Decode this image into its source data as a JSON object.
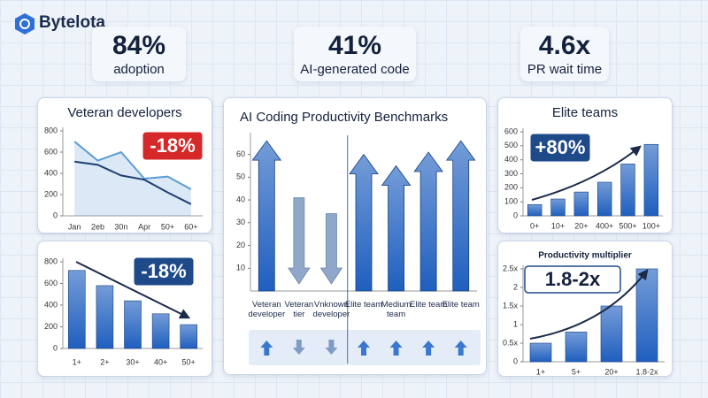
{
  "brand": "Bytelota",
  "stats": [
    {
      "value": "84%",
      "label": "adoption"
    },
    {
      "value": "41%",
      "label": "AI-generated code"
    },
    {
      "value": "4.6x",
      "label": "PR wait time"
    }
  ],
  "chart_data": [
    {
      "type": "line",
      "title": "Veteran developers",
      "categories": [
        "Jan",
        "2eb",
        "30n",
        "Apr",
        "50+",
        "60+"
      ],
      "series": [
        {
          "color": "#5b9bd5",
          "area": true,
          "values": [
            700,
            520,
            600,
            350,
            370,
            250
          ]
        },
        {
          "color": "#1f3f73",
          "values": [
            510,
            480,
            380,
            340,
            220,
            110
          ]
        }
      ],
      "ylim": [
        0,
        800
      ],
      "yticks": [
        0,
        200,
        400,
        600,
        800
      ],
      "annotation": "-18%",
      "annotation_color": "#d62828"
    },
    {
      "type": "bar",
      "categories": [
        "1+",
        "2+",
        "30+",
        "40+",
        "50+"
      ],
      "values": [
        720,
        580,
        440,
        320,
        220
      ],
      "color": "#1f5fbf",
      "ylim": [
        0,
        800
      ],
      "yticks": [
        0,
        200,
        400,
        600,
        800
      ],
      "annotation": "-18%",
      "annotation_color": "#1e4a8a"
    },
    {
      "type": "arrow",
      "title": "AI Coding Productivity Benchmarks",
      "categories": [
        "Veteran developer",
        "Veteran tier",
        "Vnknown developer",
        "Elite team",
        "Medium team",
        "Elite team",
        "Elite team"
      ],
      "values": [
        66,
        41,
        34,
        60,
        55,
        61,
        66
      ],
      "directions": [
        "up",
        "down",
        "down",
        "up",
        "up",
        "up",
        "up"
      ],
      "color": "#1f5fbf",
      "down_color": "#8fa8c9",
      "ylim": [
        0,
        68
      ],
      "yticks": [
        10,
        20,
        30,
        40,
        50,
        60
      ]
    },
    {
      "type": "bar",
      "title": "Elite teams",
      "categories": [
        "0+",
        "10+",
        "20+",
        "400+",
        "500+",
        "100+"
      ],
      "values": [
        80,
        120,
        170,
        240,
        370,
        510
      ],
      "color": "#1f5fbf",
      "ylim": [
        0,
        600
      ],
      "yticks": [
        0,
        100,
        200,
        300,
        400,
        500,
        600
      ],
      "annotation": "+80%",
      "annotation_color": "#1e4a8a"
    },
    {
      "type": "bar",
      "title": "Productivity multiplier",
      "categories": [
        "1+",
        "5+",
        "20+",
        "1.8-2x"
      ],
      "values": [
        0.5,
        0.8,
        1.5,
        2.5
      ],
      "color": "#1f5fbf",
      "ylim": [
        0,
        2.5
      ],
      "yticks": [
        0,
        {
          "value": 0.5,
          "label": "0.5x"
        },
        1,
        {
          "value": 1.5,
          "label": "1.5x"
        },
        2,
        {
          "value": 2.5,
          "label": "2.5x"
        }
      ],
      "annotation": "1.8-2x",
      "annotation_color": "#ffffff"
    }
  ]
}
